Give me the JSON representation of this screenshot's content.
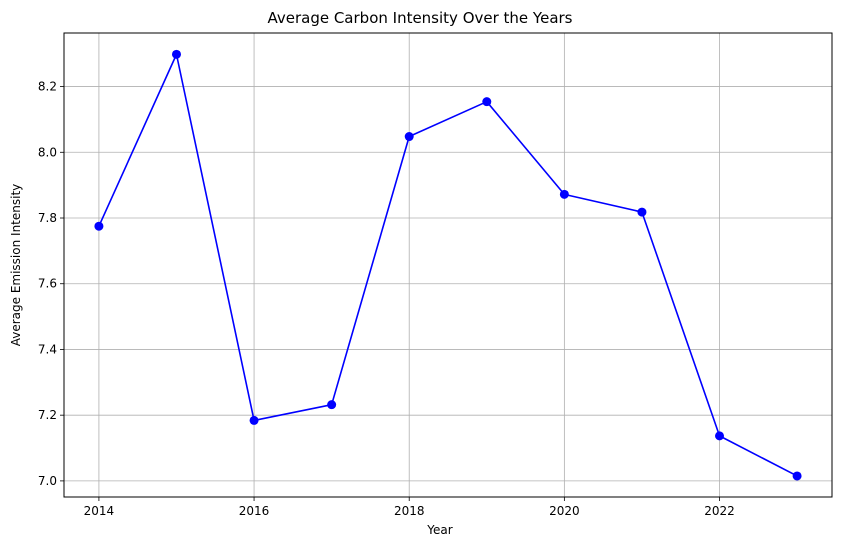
{
  "chart_data": {
    "type": "line",
    "title": "Average Carbon Intensity Over the Years",
    "xlabel": "Year",
    "ylabel": "Average Emission Intensity",
    "x": [
      2014,
      2015,
      2016,
      2017,
      2018,
      2019,
      2020,
      2021,
      2022,
      2023
    ],
    "series": [
      {
        "values": [
          7.775,
          8.298,
          7.184,
          7.232,
          8.048,
          8.154,
          7.872,
          7.818,
          7.137,
          7.015
        ]
      }
    ],
    "xlim": [
      2013.55,
      2023.45
    ],
    "ylim": [
      6.951,
      8.363
    ],
    "xticks": [
      2014,
      2016,
      2018,
      2020,
      2022
    ],
    "xtick_labels": [
      "2014",
      "2016",
      "2018",
      "2020",
      "2022"
    ],
    "yticks": [
      7.0,
      7.2,
      7.4,
      7.6,
      7.8,
      8.0,
      8.2
    ],
    "ytick_labels": [
      "7.0",
      "7.2",
      "7.4",
      "7.6",
      "7.8",
      "8.0",
      "8.2"
    ],
    "grid": true,
    "line_color": "#0000ff",
    "marker_color": "#0000ff",
    "grid_color": "#b0b0b0"
  }
}
